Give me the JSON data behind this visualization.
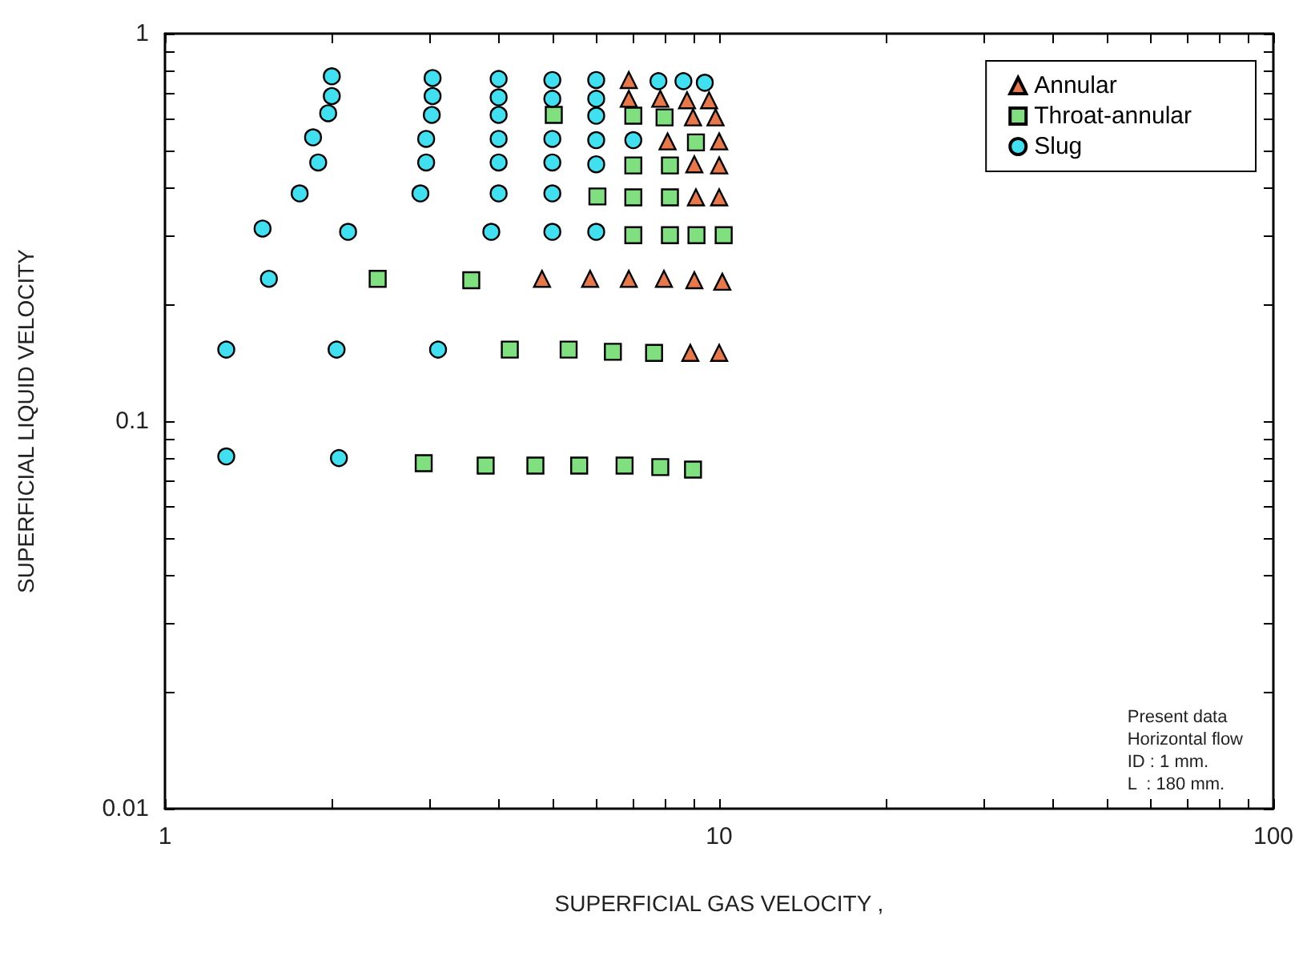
{
  "chart_data": {
    "type": "scatter",
    "xlabel": "SUPERFICIAL GAS VELOCITY ,",
    "ylabel": "SUPERFICIAL LIQUID VELOCITY",
    "log": "xy",
    "grid": false,
    "legend": "top right",
    "xlim": [
      1,
      100
    ],
    "ylim": [
      0.01,
      1
    ],
    "xticks": [
      1,
      {
        "value": 2,
        "label": null
      },
      {
        "value": 3,
        "label": null
      },
      {
        "value": 4,
        "label": null
      },
      {
        "value": 5,
        "label": null
      },
      {
        "value": 6,
        "label": null
      },
      {
        "value": 7,
        "label": null
      },
      {
        "value": 8,
        "label": null
      },
      {
        "value": 9,
        "label": null
      },
      10,
      {
        "value": 20,
        "label": null
      },
      {
        "value": 30,
        "label": null
      },
      {
        "value": 40,
        "label": null
      },
      {
        "value": 50,
        "label": null
      },
      {
        "value": 60,
        "label": null
      },
      {
        "value": 70,
        "label": null
      },
      {
        "value": 80,
        "label": null
      },
      {
        "value": 90,
        "label": null
      },
      100
    ],
    "yticks": [
      0.01,
      {
        "value": 0.02,
        "label": null
      },
      {
        "value": 0.03,
        "label": null
      },
      {
        "value": 0.04,
        "label": null
      },
      {
        "value": 0.05,
        "label": null
      },
      {
        "value": 0.06,
        "label": null
      },
      {
        "value": 0.07,
        "label": null
      },
      {
        "value": 0.08,
        "label": null
      },
      {
        "value": 0.09,
        "label": null
      },
      0.1,
      {
        "value": 0.2,
        "label": null
      },
      {
        "value": 0.3,
        "label": null
      },
      {
        "value": 0.4,
        "label": null
      },
      {
        "value": 0.5,
        "label": null
      },
      {
        "value": 0.6,
        "label": null
      },
      {
        "value": 0.7,
        "label": null
      },
      {
        "value": 0.8,
        "label": null
      },
      {
        "value": 0.9,
        "label": null
      },
      1
    ],
    "annotations": [
      "Present data\nHorizontal flow\nID : 1 mm.\nL  : 180 mm."
    ],
    "series": [
      {
        "name": "Annular",
        "color": "#e8784a",
        "marker": "triangle",
        "x": [
          6.87,
          6.87,
          7.83,
          8.75,
          9.59,
          8.97,
          9.85,
          8.07,
          10.0,
          9.02,
          10.0,
          9.08,
          10.0,
          4.79,
          5.85,
          6.87,
          7.95,
          9.02,
          10.13,
          8.87,
          10.0
        ],
        "values": [
          0.759,
          0.679,
          0.679,
          0.673,
          0.673,
          0.608,
          0.608,
          0.527,
          0.527,
          0.46,
          0.457,
          0.378,
          0.378,
          0.233,
          0.233,
          0.233,
          0.233,
          0.231,
          0.229,
          0.15,
          0.15
        ]
      },
      {
        "name": "Throat-annular",
        "color": "#80e080",
        "marker": "square",
        "x": [
          5.03,
          7.0,
          7.97,
          9.08,
          7.0,
          8.15,
          6.03,
          7.0,
          8.15,
          7.0,
          8.15,
          9.1,
          10.19,
          2.42,
          3.57,
          4.19,
          5.35,
          6.43,
          7.63,
          2.93,
          3.79,
          4.66,
          5.59,
          6.75,
          7.83,
          8.97
        ],
        "values": [
          0.617,
          0.614,
          0.608,
          0.524,
          0.457,
          0.457,
          0.38,
          0.378,
          0.378,
          0.302,
          0.302,
          0.302,
          0.302,
          0.233,
          0.231,
          0.153,
          0.153,
          0.151,
          0.15,
          0.0779,
          0.0768,
          0.0768,
          0.0768,
          0.0768,
          0.0761,
          0.075
        ]
      },
      {
        "name": "Slug",
        "color": "#40e0f0",
        "marker": "circle",
        "x": [
          2.0,
          2.0,
          1.97,
          1.85,
          1.89,
          1.75,
          1.5,
          2.14,
          1.54,
          3.04,
          3.04,
          3.03,
          2.96,
          2.96,
          2.89,
          3.88,
          4.0,
          4.0,
          4.0,
          4.0,
          4.0,
          4.0,
          5.0,
          5.0,
          5.0,
          5.0,
          5.0,
          5.0,
          6.0,
          6.0,
          6.0,
          6.0,
          6.0,
          6.0,
          7.0,
          7.77,
          8.62,
          9.42,
          1.29,
          2.04,
          3.11,
          1.29,
          2.06
        ],
        "values": [
          0.776,
          0.69,
          0.623,
          0.54,
          0.465,
          0.387,
          0.314,
          0.308,
          0.233,
          0.768,
          0.69,
          0.617,
          0.535,
          0.465,
          0.387,
          0.308,
          0.764,
          0.685,
          0.617,
          0.535,
          0.465,
          0.387,
          0.759,
          0.679,
          0.535,
          0.465,
          0.387,
          0.308,
          0.759,
          0.679,
          0.614,
          0.531,
          0.46,
          0.308,
          0.531,
          0.754,
          0.754,
          0.747,
          0.153,
          0.153,
          0.153,
          0.0811,
          0.0803
        ]
      }
    ]
  }
}
